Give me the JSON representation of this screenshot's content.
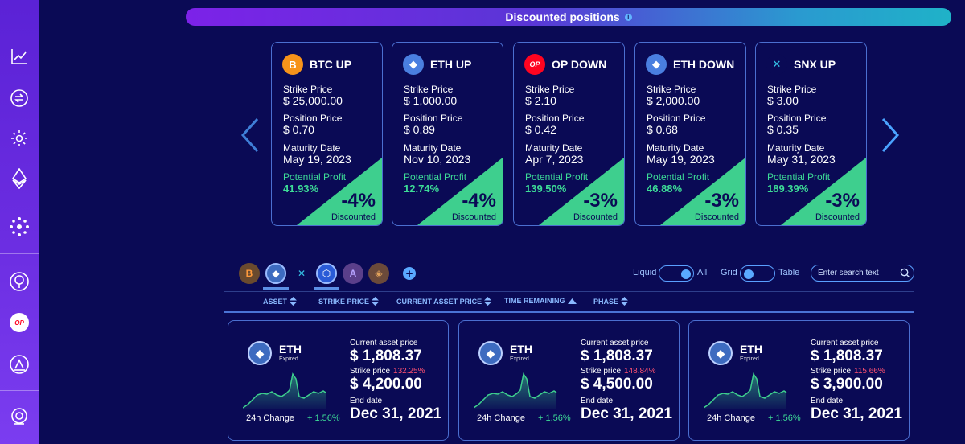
{
  "banner": {
    "title": "Discounted positions",
    "info": "i"
  },
  "positions": [
    {
      "name": "BTC UP",
      "icon": "bitcoin-icon",
      "coin_glyph": "B",
      "coin_color": "#f7931a",
      "strike_label": "Strike Price",
      "strike": "$ 25,000.00",
      "position_label": "Position Price",
      "position": "$ 0.70",
      "maturity_label": "Maturity Date",
      "maturity": "May 19, 2023",
      "profit_label": "Potential Profit",
      "profit": "41.93%",
      "discount": "-4%",
      "discount_label": "Discounted"
    },
    {
      "name": "ETH UP",
      "icon": "ethereum-icon",
      "coin_glyph": "◆",
      "coin_color": "#4a7fe0",
      "strike_label": "Strike Price",
      "strike": "$ 1,000.00",
      "position_label": "Position Price",
      "position": "$ 0.89",
      "maturity_label": "Maturity Date",
      "maturity": "Nov 10, 2023",
      "profit_label": "Potential Profit",
      "profit": "12.74%",
      "discount": "-4%",
      "discount_label": "Discounted"
    },
    {
      "name": "OP DOWN",
      "icon": "optimism-icon",
      "coin_glyph": "OP",
      "coin_color": "#ff0420",
      "strike_label": "Strike Price",
      "strike": "$ 2.10",
      "position_label": "Position Price",
      "position": "$ 0.42",
      "maturity_label": "Maturity Date",
      "maturity": "Apr 7, 2023",
      "profit_label": "Potential Profit",
      "profit": "139.50%",
      "discount": "-3%",
      "discount_label": "Discounted"
    },
    {
      "name": "ETH DOWN",
      "icon": "ethereum-icon",
      "coin_glyph": "◆",
      "coin_color": "#4a7fe0",
      "strike_label": "Strike Price",
      "strike": "$ 2,000.00",
      "position_label": "Position Price",
      "position": "$ 0.68",
      "maturity_label": "Maturity Date",
      "maturity": "May 19, 2023",
      "profit_label": "Potential Profit",
      "profit": "46.88%",
      "discount": "-3%",
      "discount_label": "Discounted"
    },
    {
      "name": "SNX UP",
      "icon": "synthetix-icon",
      "coin_glyph": "✕",
      "coin_color": "#0a0a55",
      "strike_label": "Strike Price",
      "strike": "$ 3.00",
      "position_label": "Position Price",
      "position": "$ 0.35",
      "maturity_label": "Maturity Date",
      "maturity": "May 31, 2023",
      "profit_label": "Potential Profit",
      "profit": "189.39%",
      "discount": "-3%",
      "discount_label": "Discounted"
    }
  ],
  "filters": {
    "add": "+",
    "liquid_label": "Liquid",
    "all_label": "All",
    "grid_label": "Grid",
    "table_label": "Table",
    "search_placeholder": "Enter search text"
  },
  "columns": {
    "asset": "ASSET",
    "strike_price": "STRIKE PRICE",
    "current_asset_price": "CURRENT ASSET PRICE",
    "time_remaining": "TIME REMAINING",
    "phase": "PHASE"
  },
  "markets": [
    {
      "symbol": "ETH",
      "status": "Expired",
      "change_label": "24h Change",
      "change": "+ 1.56%",
      "current_label": "Current asset price",
      "current": "$ 1,808.37",
      "strike_label": "Strike price",
      "strike_pct": "132.25%",
      "strike": "$ 4,200.00",
      "end_label": "End date",
      "end": "Dec 31, 2021"
    },
    {
      "symbol": "ETH",
      "status": "Expired",
      "change_label": "24h Change",
      "change": "+ 1.56%",
      "current_label": "Current asset price",
      "current": "$ 1,808.37",
      "strike_label": "Strike price",
      "strike_pct": "148.84%",
      "strike": "$ 4,500.00",
      "end_label": "End date",
      "end": "Dec 31, 2021"
    },
    {
      "symbol": "ETH",
      "status": "Expired",
      "change_label": "24h Change",
      "change": "+ 1.56%",
      "current_label": "Current asset price",
      "current": "$ 1,808.37",
      "strike_label": "Strike price",
      "strike_pct": "115.66%",
      "strike": "$ 3,900.00",
      "end_label": "End date",
      "end": "Dec 31, 2021"
    }
  ],
  "sidebar": {
    "op_label": "OP"
  }
}
